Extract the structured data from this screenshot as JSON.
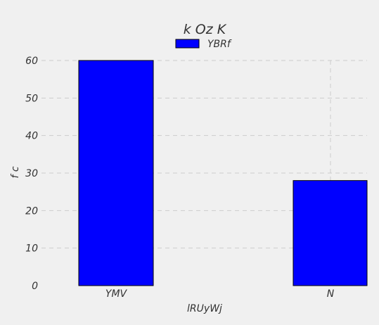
{
  "chart_data": {
    "type": "bar",
    "title": "k Oz K",
    "xlabel": "lRUyWj",
    "ylabel": "f c",
    "categories": [
      "YMV",
      "N"
    ],
    "series": [
      {
        "name": "YBRf",
        "values": [
          60,
          28
        ],
        "color": "#0000ff"
      }
    ],
    "ylim": [
      0,
      60
    ],
    "yticks": [
      0,
      10,
      20,
      30,
      40,
      50,
      60
    ],
    "grid": true,
    "legend_position": "top-center",
    "background_color": "#f0f0f0",
    "plot_background_color": "#f0f0f0"
  }
}
